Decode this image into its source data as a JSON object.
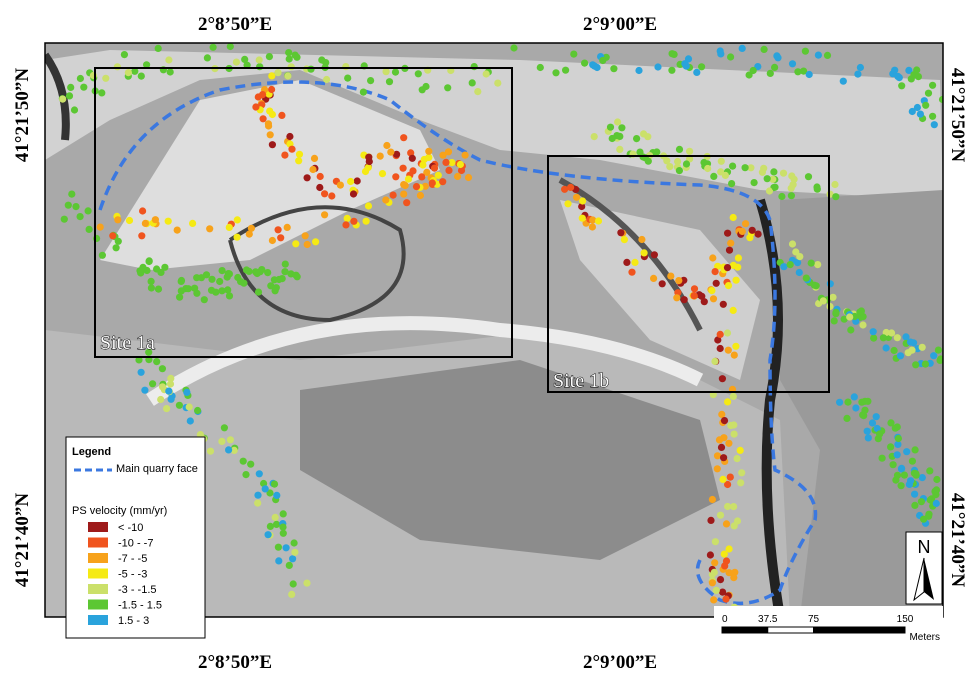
{
  "map": {
    "top_labels": [
      "2°8’50”E",
      "2°9’00”E"
    ],
    "bottom_labels": [
      "2°8’50”E",
      "2°9’00”E"
    ],
    "left_labels": [
      "41°21’50”N",
      "41°21’40”N"
    ],
    "right_labels": [
      "41°21’50”N",
      "41°21’40”N"
    ],
    "sites": [
      "Site 1a",
      "Site 1b"
    ],
    "legend": {
      "title": "Legend",
      "quarry_face": "Main quarry face",
      "velocity_title": "PS velocity (mm/yr)",
      "classes": [
        {
          "label": "< -10",
          "color": "#9e1a1a"
        },
        {
          "label": "-10 -  -7",
          "color": "#f0541e"
        },
        {
          "label": "-7 -  -5",
          "color": "#f7a21b"
        },
        {
          "label": "-5 -  -3",
          "color": "#f5ea14"
        },
        {
          "label": "-3 -  -1.5",
          "color": "#cbe06a"
        },
        {
          "label": "-1.5 - 1.5",
          "color": "#5cc733"
        },
        {
          "label": "1.5 - 3",
          "color": "#2aa3dc"
        }
      ]
    },
    "north": "N",
    "scale": {
      "ticks": [
        0,
        37.5,
        75,
        150
      ],
      "unit": "Meters"
    }
  }
}
